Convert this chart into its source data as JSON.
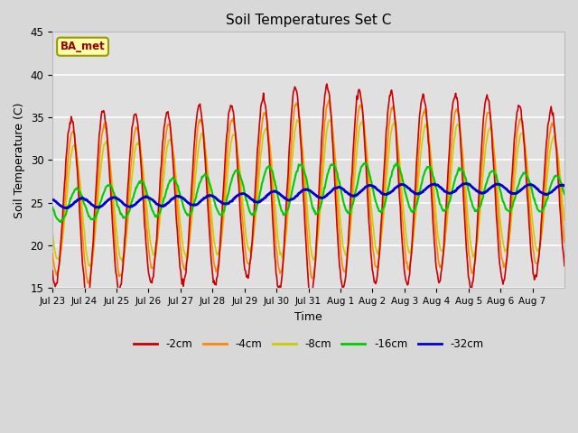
{
  "title": "Soil Temperatures Set C",
  "xlabel": "Time",
  "ylabel": "Soil Temperature (C)",
  "ylim": [
    15,
    45
  ],
  "colors": {
    "-2cm": "#cc0000",
    "-4cm": "#ff8800",
    "-8cm": "#cccc00",
    "-16cm": "#00cc00",
    "-32cm": "#0000cc"
  },
  "legend_label": "BA_met",
  "fig_bg": "#d8d8d8",
  "plot_bg": "#e0e0e0",
  "tick_labels": [
    "Jul 23",
    "Jul 24",
    "Jul 25",
    "Jul 26",
    "Jul 27",
    "Jul 28",
    "Jul 29",
    "Jul 30",
    "Jul 31",
    "Aug 1",
    "Aug 2",
    "Aug 3",
    "Aug 4",
    "Aug 5",
    "Aug 6",
    "Aug 7"
  ],
  "n_days": 16
}
